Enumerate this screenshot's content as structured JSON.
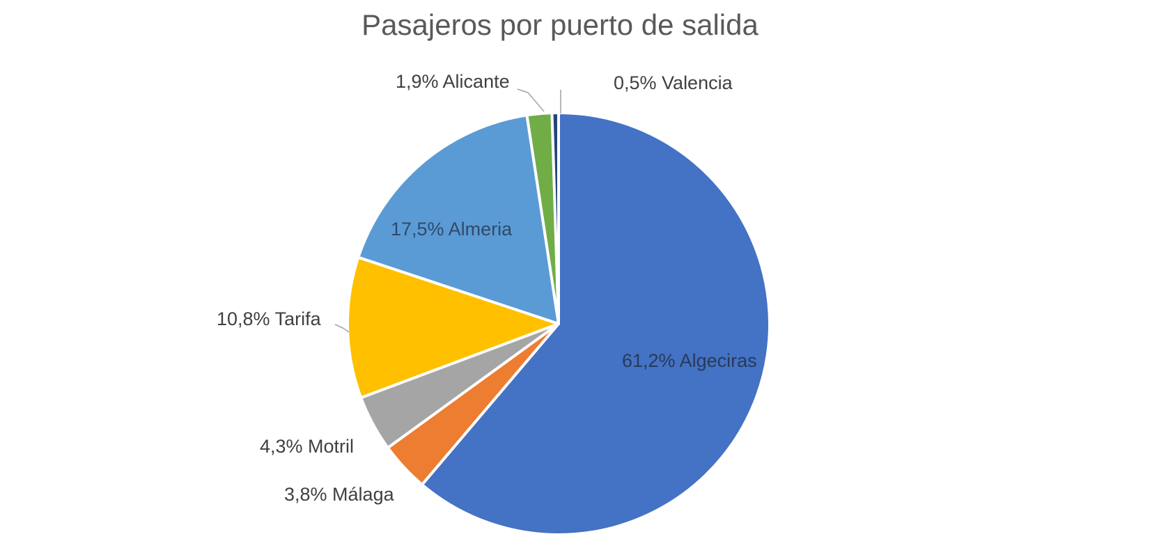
{
  "chart_data": {
    "type": "pie",
    "title": "Pasajeros por puerto de salida",
    "unit": "%",
    "direction": "clockwise",
    "start_angle_deg": 0,
    "legend": "none",
    "title_color": "#595959",
    "background": "#ffffff",
    "leader_line_color": "#a6a6a6",
    "slices": [
      {
        "name": "Algeciras",
        "value": 61.2,
        "label": "61,2% Algeciras",
        "color": "#4472C4",
        "label_position": "inside",
        "label_color": "#263b59",
        "leader_line": false
      },
      {
        "name": "Malaga",
        "value": 3.8,
        "label": "3,8% Málaga",
        "color": "#ED7D31",
        "label_position": "outside",
        "label_color": "#404040",
        "leader_line": false
      },
      {
        "name": "Motril",
        "value": 4.3,
        "label": "4,3% Motril",
        "color": "#A5A5A5",
        "label_position": "outside",
        "label_color": "#404040",
        "leader_line": false
      },
      {
        "name": "Tarifa",
        "value": 10.8,
        "label": "10,8% Tarifa",
        "color": "#FFC000",
        "label_position": "outside",
        "label_color": "#404040",
        "leader_line": true
      },
      {
        "name": "Almeria",
        "value": 17.5,
        "label": "17,5% Almeria",
        "color": "#5B9BD5",
        "label_position": "inside",
        "label_color": "#2e4a6b",
        "leader_line": false
      },
      {
        "name": "Alicante",
        "value": 1.9,
        "label": "1,9% Alicante",
        "color": "#70AD47",
        "label_position": "outside",
        "label_color": "#404040",
        "leader_line": true
      },
      {
        "name": "Valencia",
        "value": 0.5,
        "label": "0,5% Valencia",
        "color": "#264478",
        "label_position": "outside",
        "label_color": "#404040",
        "leader_line": true
      }
    ]
  }
}
